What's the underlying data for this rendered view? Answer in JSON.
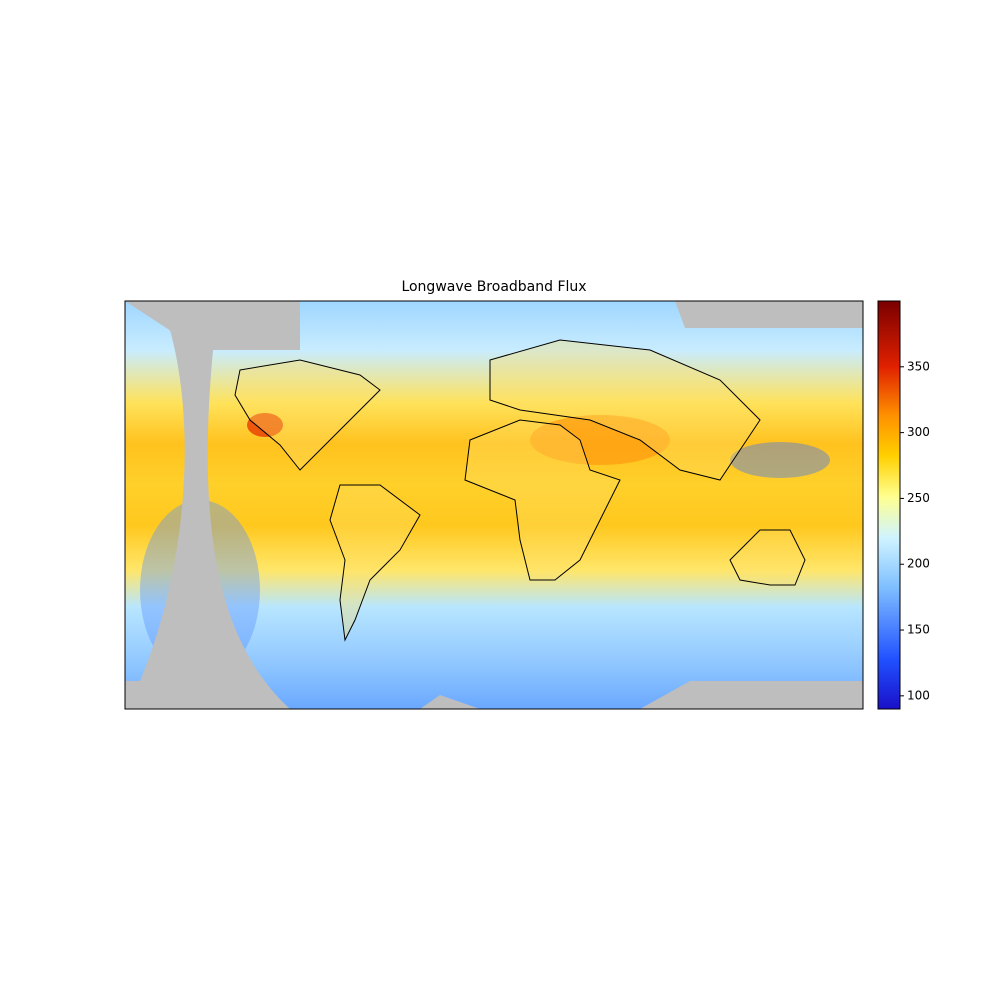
{
  "title": "Longwave Broadband Flux",
  "colorbar": {
    "clim": [
      90,
      400
    ],
    "ticks": [
      100,
      150,
      200,
      250,
      300,
      350
    ]
  }
}
